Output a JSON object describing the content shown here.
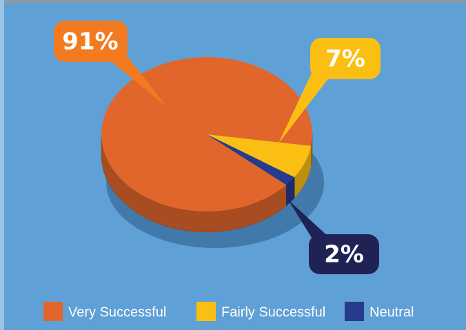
{
  "chart_data": {
    "type": "pie",
    "categories": [
      "Very Successful",
      "Fairly Successful",
      "Neutral"
    ],
    "values": [
      91,
      7,
      2
    ],
    "value_labels": [
      "91%",
      "7%",
      "2%"
    ],
    "colors": [
      "#e0662c",
      "#fbbf13",
      "#263a8e"
    ]
  }
}
